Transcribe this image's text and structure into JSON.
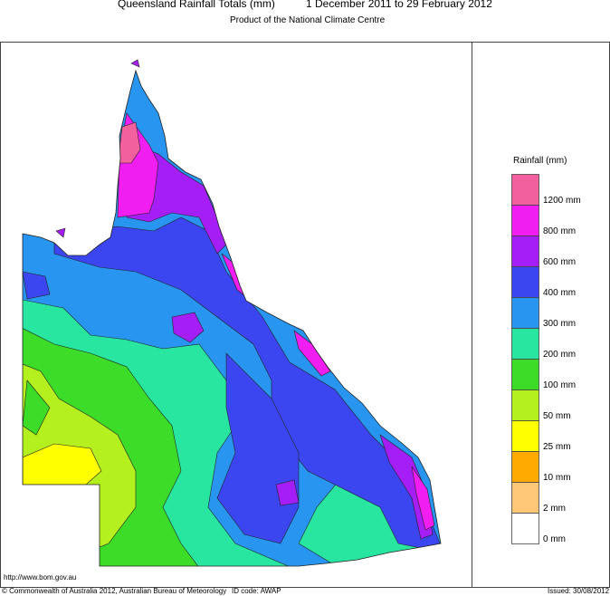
{
  "header": {
    "title": "Queensland Rainfall Totals (mm)",
    "period": "1 December 2011 to 29 February 2012",
    "subtitle": "Product of the National Climate Centre"
  },
  "legend": {
    "title": "Rainfall (mm)",
    "items": [
      {
        "label": "1200 mm",
        "color": "#f2609e"
      },
      {
        "label": "800 mm",
        "color": "#f01ef0"
      },
      {
        "label": "600 mm",
        "color": "#a51ef5"
      },
      {
        "label": "400 mm",
        "color": "#3c46f0"
      },
      {
        "label": "300 mm",
        "color": "#2896f0"
      },
      {
        "label": "200 mm",
        "color": "#28e6a0"
      },
      {
        "label": "100 mm",
        "color": "#3cdc28"
      },
      {
        "label": "50 mm",
        "color": "#b4f01e"
      },
      {
        "label": "25 mm",
        "color": "#ffff00"
      },
      {
        "label": "10 mm",
        "color": "#ffaa00"
      },
      {
        "label": "2 mm",
        "color": "#ffc878"
      },
      {
        "label": "0 mm",
        "color": "#ffffff"
      }
    ]
  },
  "footer": {
    "url": "http://www.bom.gov.au",
    "copyright": "© Commonwealth of Australia 2012, Australian Bureau of Meteorology",
    "id_code": "ID code: AWAP",
    "issued": "Issued: 30/08/2012"
  }
}
